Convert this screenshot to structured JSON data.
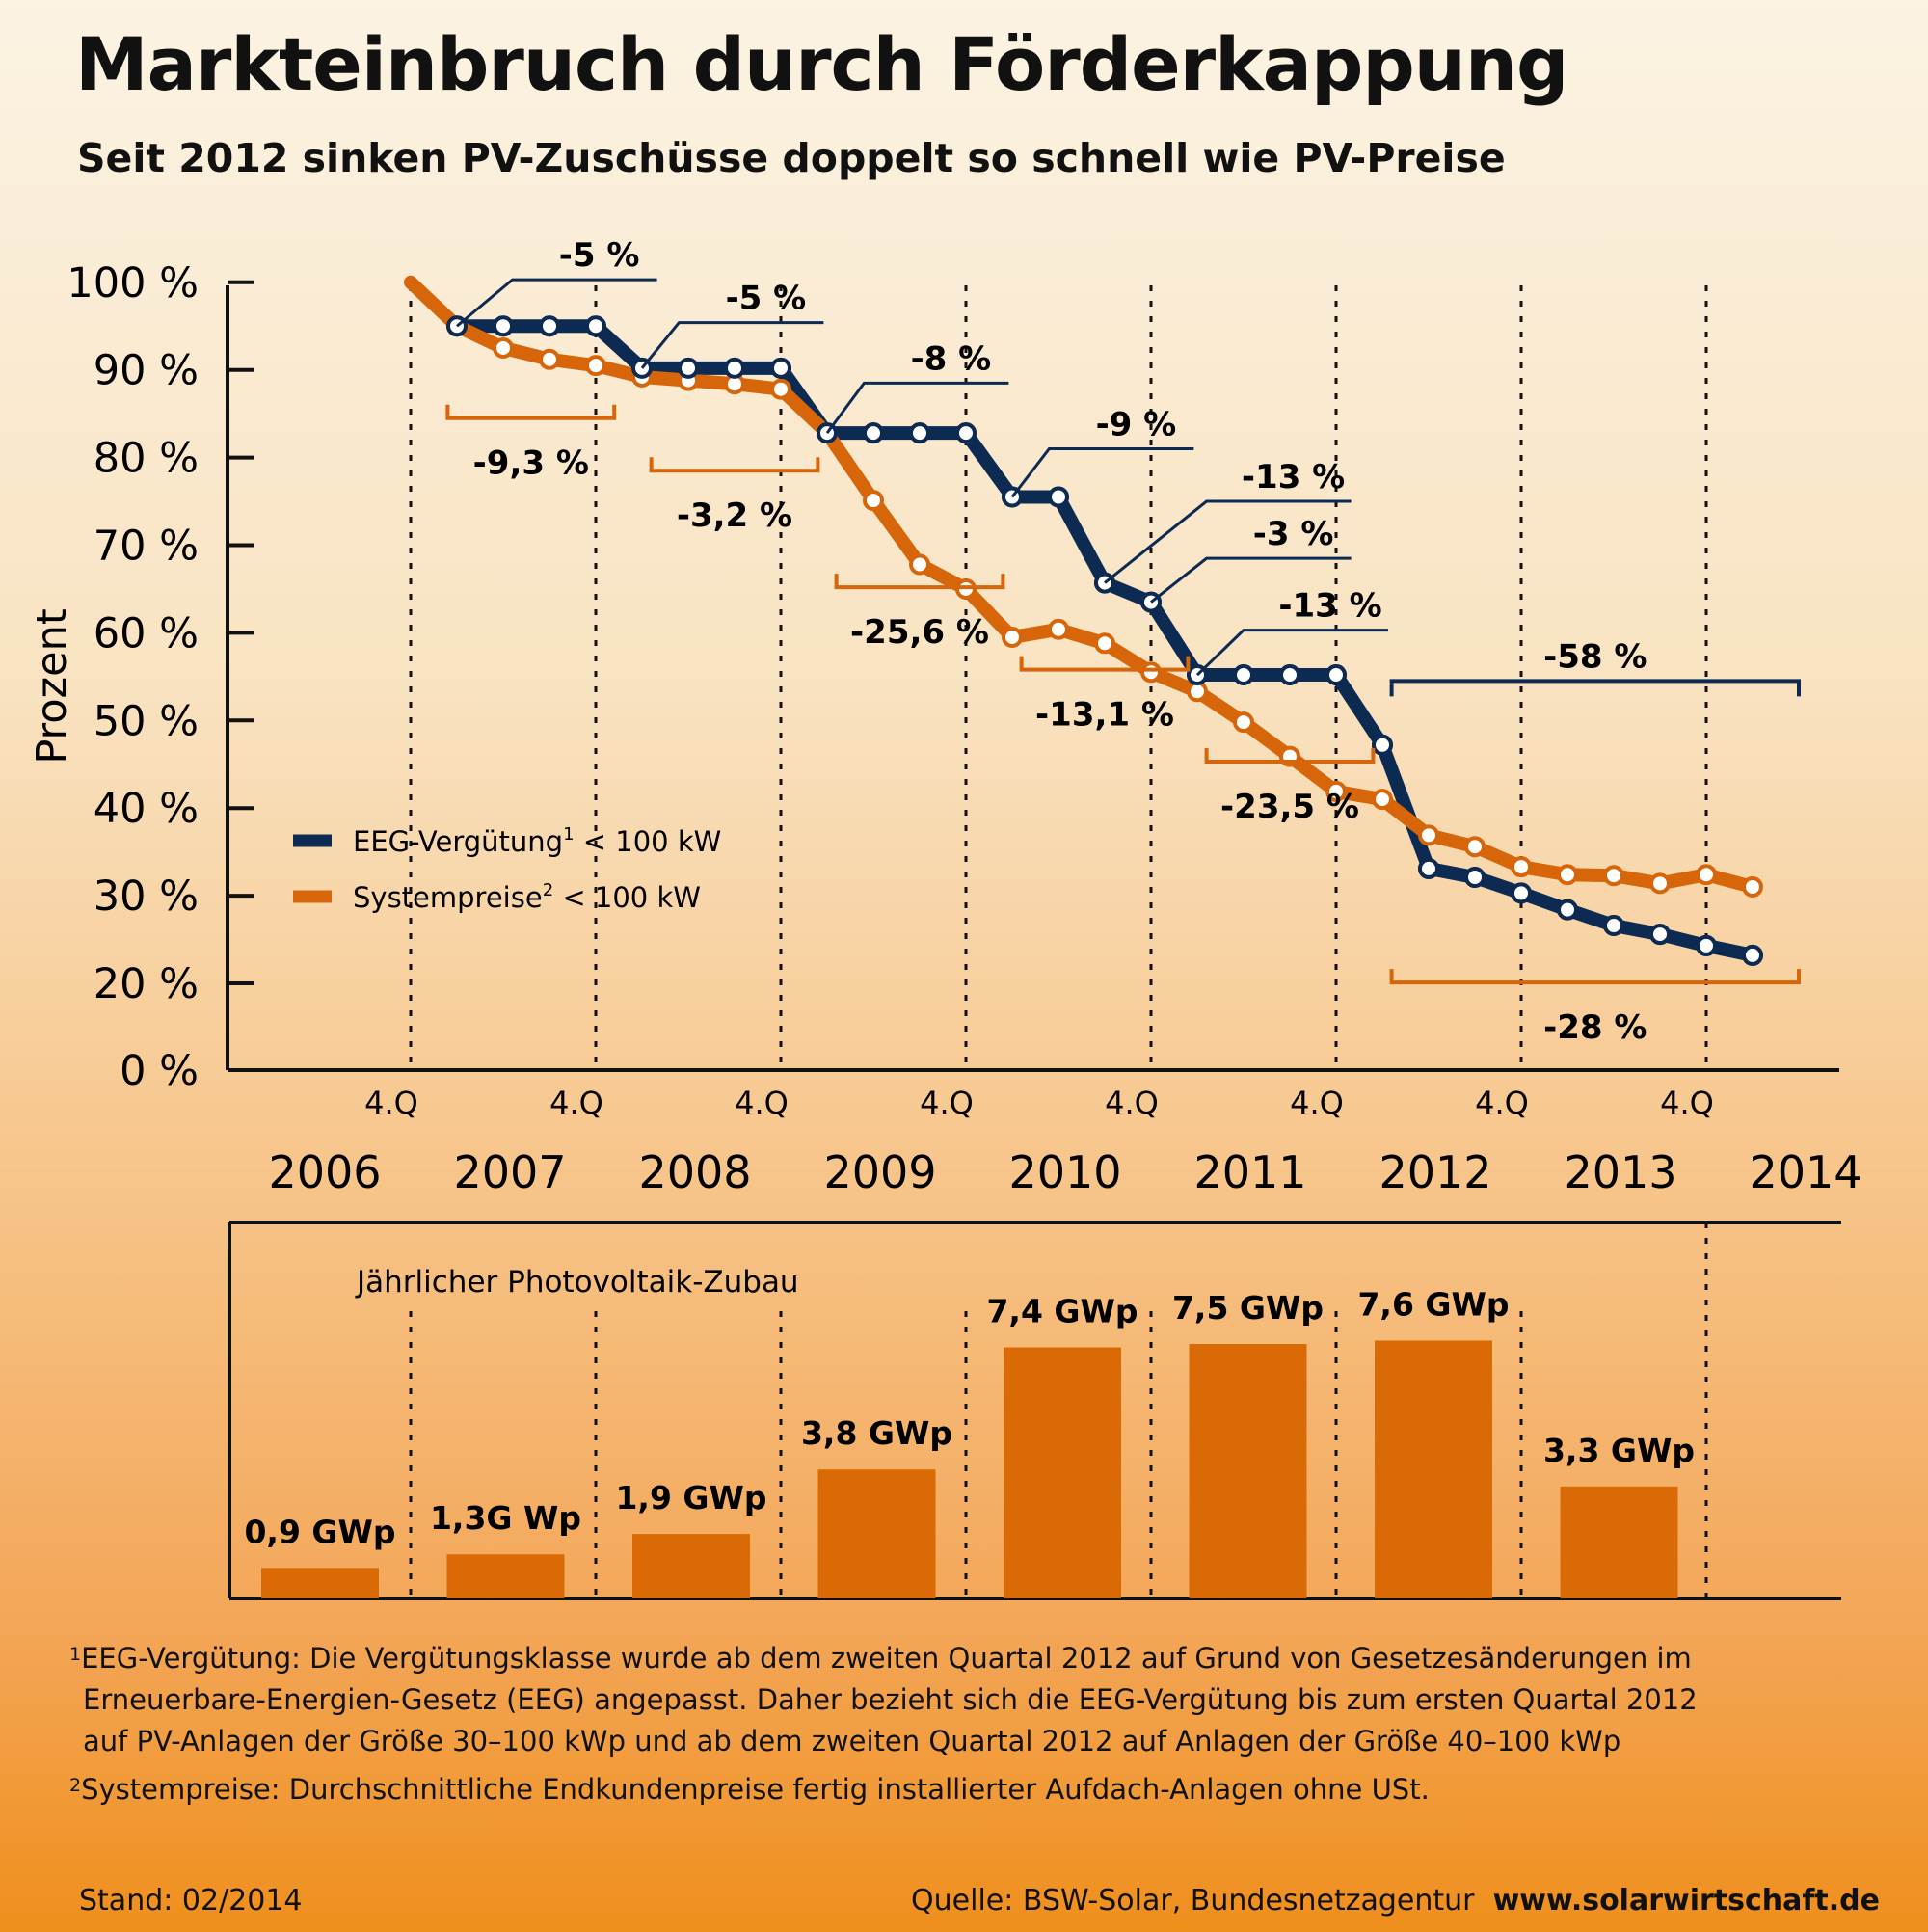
{
  "header": {
    "title": "Markteinbruch durch Förderkappung",
    "subtitle": "Seit 2012 sinken PV-Zuschüsse doppelt so schnell wie PV-Preise"
  },
  "colors": {
    "eeg": "#0d2a52",
    "system": "#d7650a",
    "bar": "#d96a06",
    "axis": "#111111"
  },
  "chart_data": [
    {
      "type": "line",
      "ylabel": "Prozent",
      "ylim": [
        0,
        100
      ],
      "y_ticks": [
        "0 %",
        "20 %",
        "30 %",
        "40 %",
        "50 %",
        "60 %",
        "70 %",
        "80 %",
        "90 %",
        "100 %"
      ],
      "quarter_marker_label": "4.Q",
      "years": [
        "2006",
        "2007",
        "2008",
        "2009",
        "2010",
        "2011",
        "2012",
        "2013",
        "2014"
      ],
      "series": [
        {
          "name": "EEG-Vergütung",
          "legend_sup": "1",
          "legend_suffix": "< 100 kW",
          "color_key": "eeg",
          "x": [
            2007.0,
            2007.25,
            2007.5,
            2007.75,
            2008.0,
            2008.25,
            2008.5,
            2008.75,
            2009.0,
            2009.25,
            2009.5,
            2009.75,
            2010.0,
            2010.25,
            2010.5,
            2010.75,
            2011.0,
            2011.25,
            2011.5,
            2011.75,
            2012.0,
            2012.25,
            2012.5,
            2012.75,
            2013.0,
            2013.25,
            2013.5,
            2013.75,
            2014.0
          ],
          "values": [
            95,
            95,
            95,
            95,
            90.2,
            90.2,
            90.2,
            90.2,
            82.8,
            82.8,
            82.8,
            82.8,
            75.5,
            75.5,
            65.7,
            63.5,
            55.2,
            55.2,
            55.2,
            55.2,
            47.2,
            33.1,
            32.1,
            30.3,
            28.4,
            26.6,
            25.6,
            24.3,
            23.2
          ],
          "markers_from_index": 0
        },
        {
          "name": "Systempreise",
          "legend_sup": "2",
          "legend_suffix": "< 100 kW",
          "color_key": "system",
          "x": [
            2006.75,
            2007.0,
            2007.25,
            2007.5,
            2007.75,
            2008.0,
            2008.25,
            2008.5,
            2008.75,
            2009.0,
            2009.25,
            2009.5,
            2009.75,
            2010.0,
            2010.25,
            2010.5,
            2010.75,
            2011.0,
            2011.25,
            2011.5,
            2011.75,
            2012.0,
            2012.25,
            2012.5,
            2012.75,
            2013.0,
            2013.25,
            2013.5,
            2013.75,
            2014.0
          ],
          "values": [
            100,
            95,
            92.5,
            91.2,
            90.5,
            89.2,
            88.8,
            88.4,
            87.8,
            82.8,
            75.1,
            67.8,
            65.0,
            59.5,
            60.4,
            58.8,
            55.5,
            53.3,
            49.8,
            45.9,
            41.9,
            41.0,
            36.9,
            35.6,
            33.3,
            32.4,
            32.3,
            31.4,
            32.4,
            31.0
          ],
          "markers_from_index": 2
        }
      ],
      "annotations_eeg": [
        {
          "text": "-5 %",
          "x": 2007.0,
          "y": 95
        },
        {
          "text": "-5 %",
          "x": 2008.0,
          "y": 90.2
        },
        {
          "text": "-8 %",
          "x": 2009.0,
          "y": 82.8
        },
        {
          "text": "-9 %",
          "x": 2010.0,
          "y": 75.5
        },
        {
          "text": "-13 %",
          "x": 2010.5,
          "y": 65.7
        },
        {
          "text": "-3 %",
          "x": 2010.75,
          "y": 63.5
        },
        {
          "text": "-13 %",
          "x": 2011.0,
          "y": 55.2
        }
      ],
      "annotations_system": [
        {
          "text": "-9,3 %",
          "x_from": 2006.95,
          "x_to": 2007.85
        },
        {
          "text": "-3,2 %",
          "x_from": 2008.05,
          "x_to": 2008.95
        },
        {
          "text": "-25,6 %",
          "x_from": 2009.05,
          "x_to": 2009.95
        },
        {
          "text": "-13,1 %",
          "x_from": 2010.05,
          "x_to": 2010.95
        },
        {
          "text": "-23,5 %",
          "x_from": 2011.05,
          "x_to": 2011.95
        },
        {
          "text": "-28 %",
          "x_from": 2012.05,
          "x_to": 2014.25
        }
      ],
      "annotation_eeg_total": {
        "text": "-58 %",
        "x_from": 2012.05,
        "x_to": 2014.25
      }
    },
    {
      "type": "bar",
      "title": "Jährlicher Photovoltaik-Zubau",
      "categories": [
        "2006",
        "2007",
        "2008",
        "2009",
        "2010",
        "2011",
        "2012",
        "2013"
      ],
      "values": [
        0.9,
        1.3,
        1.9,
        3.8,
        7.4,
        7.5,
        7.6,
        3.3
      ],
      "labels": [
        "0,9 GWp",
        "1,3G Wp",
        "1,9 GWp",
        "3,8 GWp",
        "7,4 GWp",
        "7,5 GWp",
        "7,6 GWp",
        "3,3 GWp"
      ],
      "unit": "GWp"
    }
  ],
  "footnotes": [
    {
      "sup": "1",
      "text": "EEG-Vergütung: Die Vergütungsklasse wurde ab dem zweiten Quartal 2012 auf Grund von Gesetzesänderungen im"
    },
    {
      "sup": "",
      "text": "Erneuerbare-Energien-Gesetz (EEG) angepasst. Daher bezieht sich die EEG-Vergütung bis zum ersten Quartal 2012"
    },
    {
      "sup": "",
      "text": "auf PV-Anlagen der Größe 30–100 kWp und ab dem zweiten Quartal 2012 auf Anlagen der Größe 40–100 kWp"
    },
    {
      "sup": "2",
      "text": "Systempreise: Durchschnittliche Endkundenpreise fertig installierter Aufdach-Anlagen ohne USt."
    }
  ],
  "footer": {
    "stand": "Stand: 02/2014",
    "source": "Quelle: BSW-Solar, Bundesnetzagentur",
    "website": "www.solarwirtschaft.de"
  }
}
